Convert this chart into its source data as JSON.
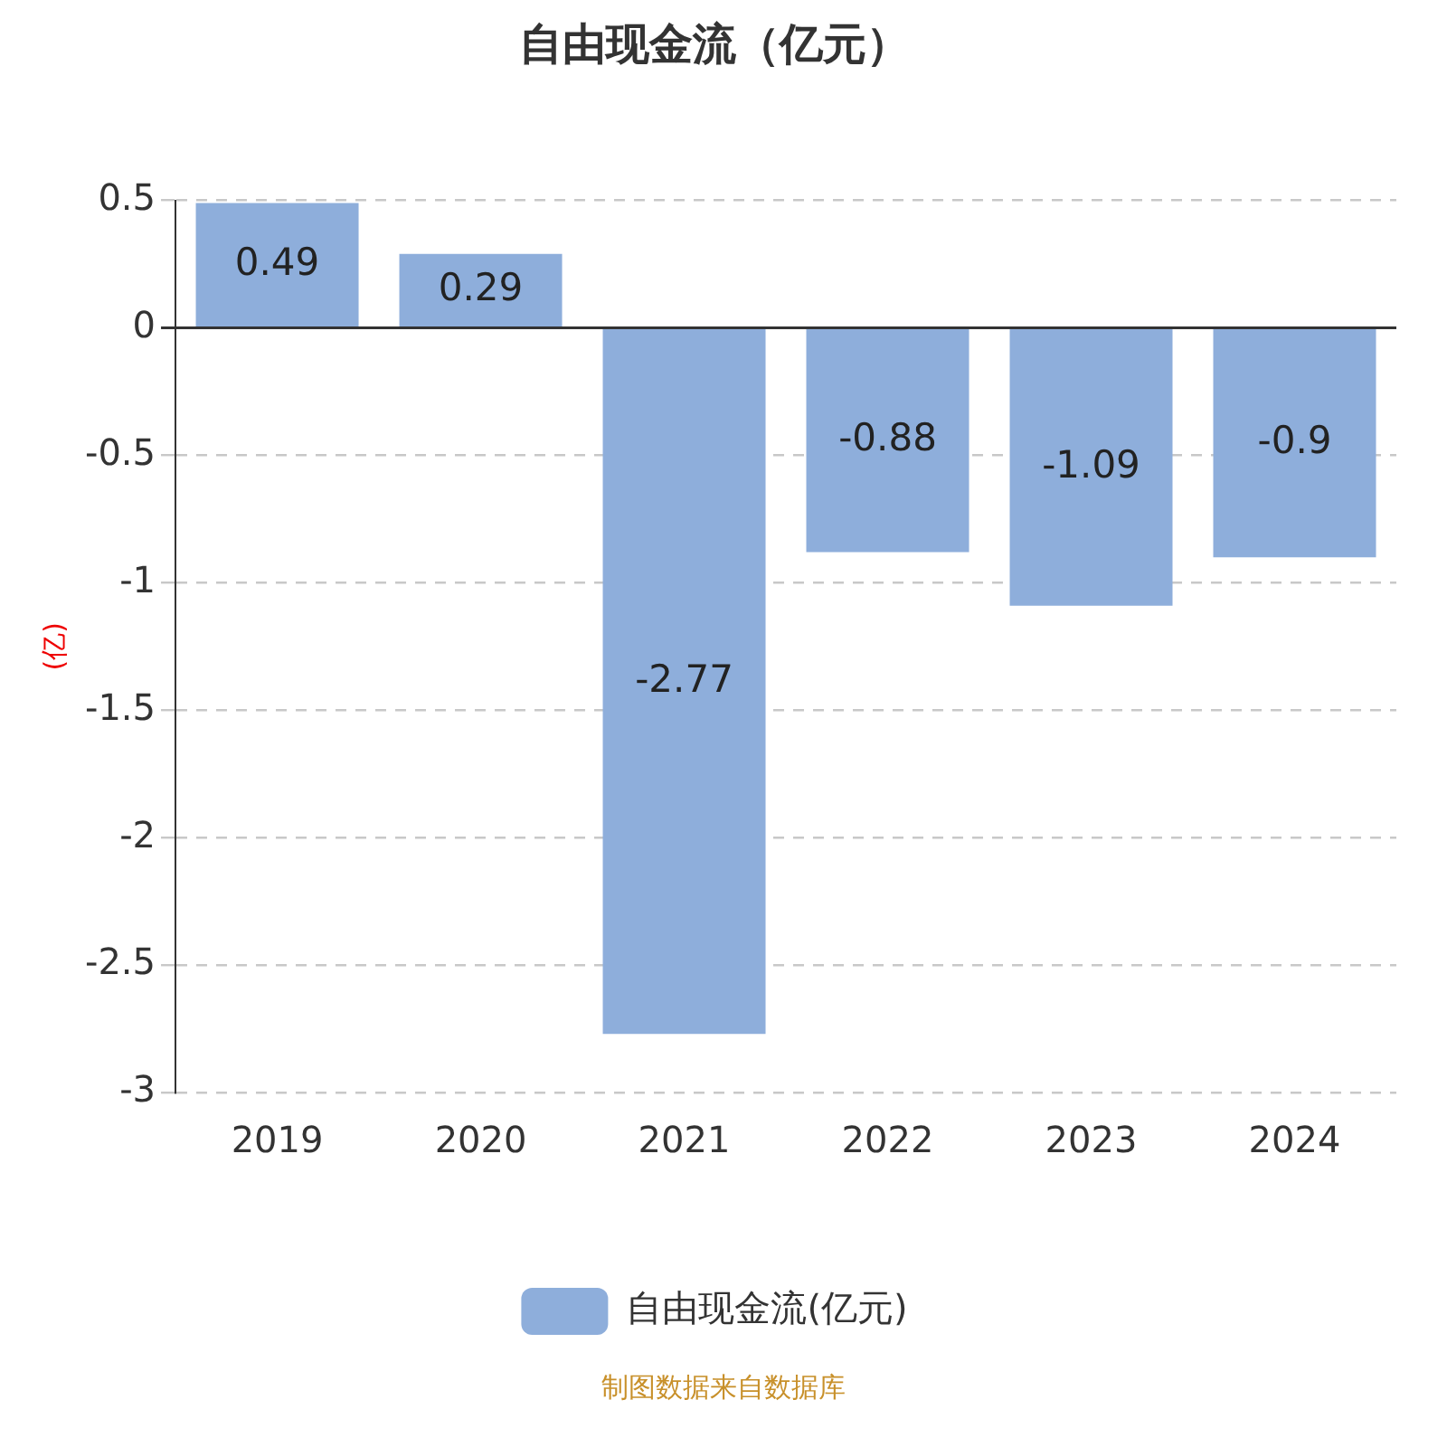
{
  "chart_data": {
    "type": "bar",
    "title": "自由现金流（亿元）",
    "ylabel": "(亿)",
    "categories": [
      "2019",
      "2020",
      "2021",
      "2022",
      "2023",
      "2024"
    ],
    "series": [
      {
        "name": "自由现金流(亿元)",
        "color": "#8eaedb",
        "values": [
          0.49,
          0.29,
          -2.77,
          -0.88,
          -1.09,
          -0.9
        ]
      }
    ],
    "ylim": [
      -3,
      0.5
    ],
    "yticks": [
      -3,
      -2.5,
      -2,
      -1.5,
      -1,
      -0.5,
      0,
      0.5
    ],
    "grid": "y",
    "legend": "bottom",
    "data_labels": true,
    "annotations": [
      "制图数据来自数据库"
    ]
  }
}
